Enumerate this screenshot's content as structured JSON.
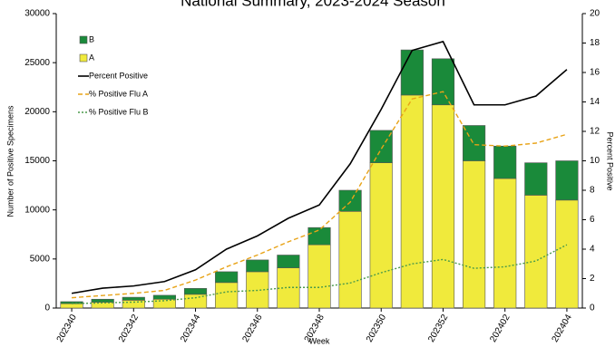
{
  "chart_data": {
    "type": "bar",
    "title": "National Summary, 2023-2024 Season",
    "x_label": "Week",
    "y_label": "Number of Positive Specimens",
    "y2_label": "Percent Positive",
    "categories": [
      "202340",
      null,
      "202342",
      null,
      "202344",
      null,
      "202346",
      null,
      "202348",
      null,
      "202350",
      null,
      "202352",
      null,
      "202402",
      null,
      "202404"
    ],
    "ylim": [
      0,
      30000
    ],
    "yticks": [
      0,
      5000,
      10000,
      15000,
      20000,
      25000,
      30000
    ],
    "y2lim": [
      0,
      20
    ],
    "y2ticks": [
      0,
      2,
      4,
      6,
      8,
      10,
      12,
      14,
      16,
      18,
      20
    ],
    "legend": "upper left",
    "series": [
      {
        "name": "B",
        "type": "bar",
        "color": "#1a8a3a",
        "values": [
          200,
          300,
          300,
          400,
          600,
          1100,
          1200,
          1300,
          1750,
          2150,
          3300,
          4600,
          4700,
          3600,
          3300,
          3300,
          4000
        ]
      },
      {
        "name": "A",
        "type": "bar",
        "color": "#f0ea3c",
        "values": [
          450,
          600,
          800,
          900,
          1400,
          2600,
          3700,
          4100,
          6450,
          9850,
          14800,
          21700,
          20700,
          15000,
          13200,
          11500,
          11000
        ]
      },
      {
        "name": "Percent Positive",
        "type": "line",
        "axis": "y2",
        "color": "#000000",
        "dash": "solid",
        "values": [
          1.0,
          1.35,
          1.5,
          1.8,
          2.6,
          4.0,
          4.9,
          6.1,
          7.0,
          9.8,
          13.5,
          17.5,
          18.1,
          13.8,
          13.8,
          14.4,
          16.2
        ]
      },
      {
        "name": "% Positive Flu A",
        "type": "line",
        "axis": "y2",
        "color": "#e8a317",
        "dash": "dashed",
        "values": [
          0.7,
          0.85,
          1.0,
          1.2,
          1.9,
          2.8,
          3.6,
          4.5,
          5.3,
          7.2,
          10.8,
          14.2,
          14.7,
          11.1,
          11.0,
          11.2,
          11.8
        ]
      },
      {
        "name": "% Positive Flu B",
        "type": "line",
        "axis": "y2",
        "color": "#4a9a4a",
        "dash": "dotted",
        "values": [
          0.3,
          0.35,
          0.4,
          0.5,
          0.7,
          1.1,
          1.2,
          1.4,
          1.4,
          1.7,
          2.4,
          3.0,
          3.3,
          2.7,
          2.8,
          3.2,
          4.3
        ]
      }
    ]
  }
}
